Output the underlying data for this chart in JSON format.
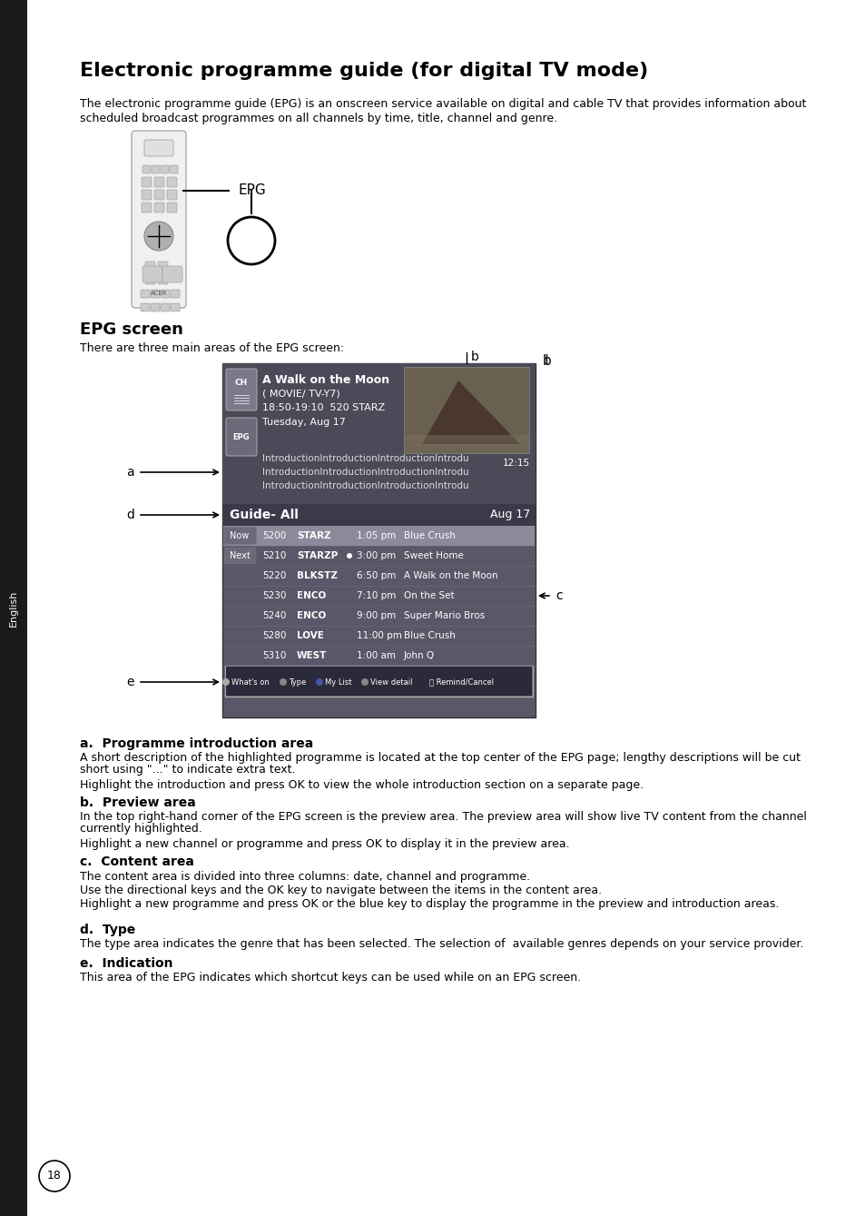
{
  "title": "Electronic programme guide (for digital TV mode)",
  "intro_text_1": "The electronic programme guide (EPG) is an onscreen service available on digital and cable TV that provides information about",
  "intro_text_2": "scheduled broadcast programmes on all channels by time, title, channel and genre.",
  "epg_label": "EPG",
  "epg_screen_heading": "EPG screen",
  "epg_screen_subtext": "There are three main areas of the EPG screen:",
  "bg_color": "#ffffff",
  "sidebar_color": "#1a1a1a",
  "sidebar_text": "English",
  "section_a_heading": "a.  Programme introduction area",
  "section_a_text1": "A short description of the highlighted programme is located at the top center of the EPG page; lengthy descriptions will be cut short using \"...\" to indicate extra text.",
  "section_a_text2": "Highlight the introduction and press OK to view the whole introduction section on a separate page.",
  "section_b_heading": "b.  Preview area",
  "section_b_text1": "In the top right-hand corner of the EPG screen is the preview area. The preview area will show live TV content from the channel currently highlighted.",
  "section_b_text2": "Highlight a new channel or programme and press OK to display it in the preview area.",
  "section_c_heading": "c.  Content area",
  "section_c_text1": "The content area is divided into three columns: date, channel and programme.",
  "section_c_text2": "Use the directional keys and the OK key to navigate between the items in the content area.",
  "section_c_text3": "Highlight a new programme and press OK or the blue key to display the programme in the preview and introduction areas.",
  "section_d_heading": "d.  Type",
  "section_d_text": "The type area indicates the genre that has been selected. The selection of  available genres depends on your service provider.",
  "section_e_heading": "e.  Indication",
  "section_e_text": "This area of the EPG indicates which shortcut keys can be used while on an EPG screen.",
  "page_number": "18"
}
